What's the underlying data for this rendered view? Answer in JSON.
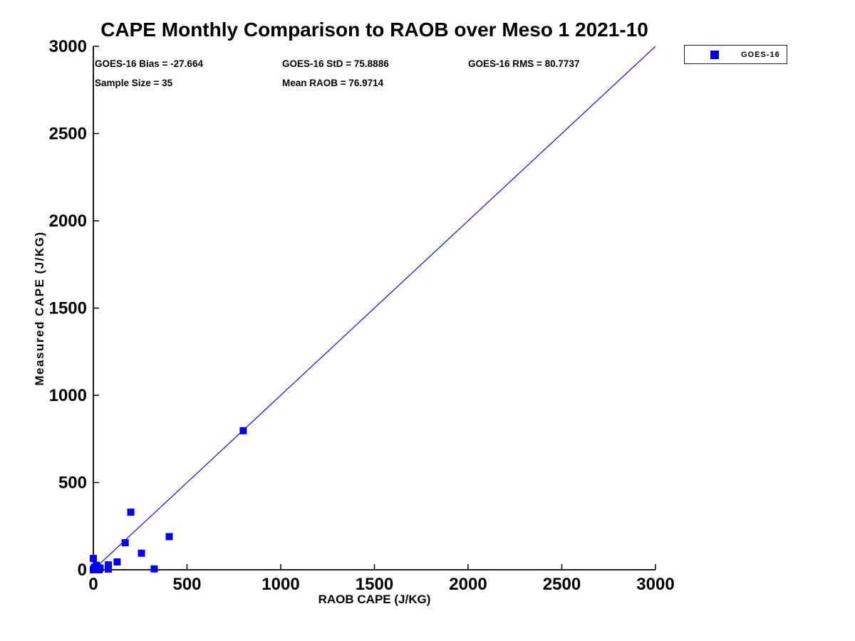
{
  "colors": {
    "marker": "#0000ee",
    "line": "#2323cd",
    "axis": "#000000",
    "background": "#ffffff"
  },
  "chart_data": {
    "type": "scatter",
    "title": "CAPE Monthly Comparison to RAOB over Meso 1 2021-10",
    "xlabel": "RAOB CAPE (J/KG)",
    "ylabel": "Measured CAPE (J/KG)",
    "xlim": [
      0,
      3000
    ],
    "ylim": [
      0,
      3000
    ],
    "xticks": [
      0,
      500,
      1000,
      1500,
      2000,
      2500,
      3000
    ],
    "yticks": [
      0,
      500,
      1000,
      1500,
      2000,
      2500,
      3000
    ],
    "grid": false,
    "legend_position": "top-right-outside",
    "annotations": [
      {
        "text": "GOES-16 Bias = -27.664"
      },
      {
        "text": "GOES-16 StD = 75.8886"
      },
      {
        "text": "GOES-16 RMS = 80.7737"
      },
      {
        "text": "Sample Size = 35"
      },
      {
        "text": "Mean RAOB = 76.9714"
      }
    ],
    "stats": {
      "bias": -27.664,
      "std": 75.8886,
      "rms": 80.7737,
      "sample_size": 35,
      "mean_raob": 76.9714
    },
    "reference_line": {
      "label": "1:1 line",
      "from": [
        0,
        0
      ],
      "to": [
        3000,
        3000
      ]
    },
    "series": [
      {
        "name": "GOES-16",
        "marker": "square",
        "points": [
          [
            0,
            0
          ],
          [
            3,
            5
          ],
          [
            6,
            14
          ],
          [
            10,
            2
          ],
          [
            14,
            8
          ],
          [
            18,
            18
          ],
          [
            22,
            4
          ],
          [
            26,
            12
          ],
          [
            31,
            0
          ],
          [
            36,
            9
          ],
          [
            15,
            26
          ],
          [
            0,
            65
          ],
          [
            80,
            28
          ],
          [
            80,
            4
          ],
          [
            127,
            45
          ],
          [
            170,
            155
          ],
          [
            200,
            330
          ],
          [
            257,
            95
          ],
          [
            325,
            5
          ],
          [
            405,
            190
          ],
          [
            800,
            797
          ]
        ]
      }
    ]
  }
}
